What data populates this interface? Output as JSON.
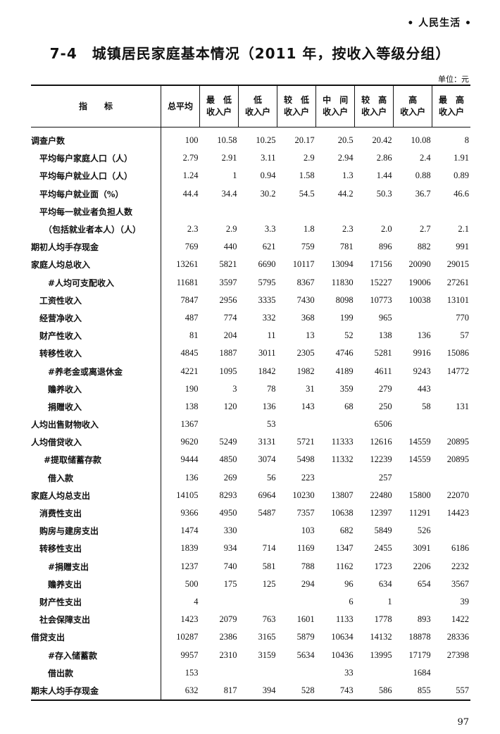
{
  "header": {
    "section": "• 人民生活 •",
    "title": "7-4　城镇居民家庭基本情况（2011 年，按收入等级分组）",
    "unit": "单位：元"
  },
  "table": {
    "columns": [
      "指　　标",
      "总平均",
      "最　低\n收入户",
      "低\n收入户",
      "较　低\n收入户",
      "中　间\n收入户",
      "较　高\n收入户",
      "高\n收入户",
      "最　高\n收入户"
    ],
    "rows": [
      {
        "label": "调查户数",
        "indent": 0,
        "values": [
          "100",
          "10.58",
          "10.25",
          "20.17",
          "20.5",
          "20.42",
          "10.08",
          "8"
        ]
      },
      {
        "label": "平均每户家庭人口（人）",
        "indent": 1,
        "values": [
          "2.79",
          "2.91",
          "3.11",
          "2.9",
          "2.94",
          "2.86",
          "2.4",
          "1.91"
        ]
      },
      {
        "label": "平均每户就业人口（人）",
        "indent": 1,
        "values": [
          "1.24",
          "1",
          "0.94",
          "1.58",
          "1.3",
          "1.44",
          "0.88",
          "0.89"
        ]
      },
      {
        "label": "平均每户就业面（%）",
        "indent": 1,
        "values": [
          "44.4",
          "34.4",
          "30.2",
          "54.5",
          "44.2",
          "50.3",
          "36.7",
          "46.6"
        ]
      },
      {
        "label": "平均每一就业者负担人数",
        "indent": 1,
        "values": [
          "",
          "",
          "",
          "",
          "",
          "",
          "",
          ""
        ]
      },
      {
        "label": "（包括就业者本人）（人）",
        "indent": 1.5,
        "values": [
          "2.3",
          "2.9",
          "3.3",
          "1.8",
          "2.3",
          "2.0",
          "2.7",
          "2.1"
        ]
      },
      {
        "label": "期初人均手存现金",
        "indent": 0,
        "values": [
          "769",
          "440",
          "621",
          "759",
          "781",
          "896",
          "882",
          "991"
        ]
      },
      {
        "label": "家庭人均总收入",
        "indent": 0,
        "values": [
          "13261",
          "5821",
          "6690",
          "10117",
          "13094",
          "17156",
          "20090",
          "29015"
        ]
      },
      {
        "label": "#人均可支配收入",
        "indent": 2,
        "values": [
          "11681",
          "3597",
          "5795",
          "8367",
          "11830",
          "15227",
          "19006",
          "27261"
        ]
      },
      {
        "label": "工资性收入",
        "indent": 1,
        "values": [
          "7847",
          "2956",
          "3335",
          "7430",
          "8098",
          "10773",
          "10038",
          "13101"
        ]
      },
      {
        "label": "经营净收入",
        "indent": 1,
        "values": [
          "487",
          "774",
          "332",
          "368",
          "199",
          "965",
          "",
          "770"
        ]
      },
      {
        "label": "财产性收入",
        "indent": 1,
        "values": [
          "81",
          "204",
          "11",
          "13",
          "52",
          "138",
          "136",
          "57"
        ]
      },
      {
        "label": "转移性收入",
        "indent": 1,
        "values": [
          "4845",
          "1887",
          "3011",
          "2305",
          "4746",
          "5281",
          "9916",
          "15086"
        ]
      },
      {
        "label": "#养老金或离退休金",
        "indent": 2,
        "values": [
          "4221",
          "1095",
          "1842",
          "1982",
          "4189",
          "4611",
          "9243",
          "14772"
        ]
      },
      {
        "label": "赡养收入",
        "indent": 2,
        "values": [
          "190",
          "3",
          "78",
          "31",
          "359",
          "279",
          "443",
          ""
        ]
      },
      {
        "label": "捐赠收入",
        "indent": 2,
        "values": [
          "138",
          "120",
          "136",
          "143",
          "68",
          "250",
          "58",
          "131"
        ]
      },
      {
        "label": "人均出售财物收入",
        "indent": 0,
        "values": [
          "1367",
          "",
          "53",
          "",
          "",
          "6506",
          "",
          ""
        ]
      },
      {
        "label": "人均借贷收入",
        "indent": 0,
        "values": [
          "9620",
          "5249",
          "3131",
          "5721",
          "11333",
          "12616",
          "14559",
          "20895"
        ]
      },
      {
        "label": "#提取储蓄存款",
        "indent": 1.5,
        "values": [
          "9444",
          "4850",
          "3074",
          "5498",
          "11332",
          "12239",
          "14559",
          "20895"
        ]
      },
      {
        "label": "借入款",
        "indent": 2,
        "values": [
          "136",
          "269",
          "56",
          "223",
          "",
          "257",
          "",
          ""
        ]
      },
      {
        "label": "家庭人均总支出",
        "indent": 0,
        "values": [
          "14105",
          "8293",
          "6964",
          "10230",
          "13807",
          "22480",
          "15800",
          "22070"
        ]
      },
      {
        "label": "消费性支出",
        "indent": 1,
        "values": [
          "9366",
          "4950",
          "5487",
          "7357",
          "10638",
          "12397",
          "11291",
          "14423"
        ]
      },
      {
        "label": "购房与建房支出",
        "indent": 1,
        "values": [
          "1474",
          "330",
          "",
          "103",
          "682",
          "5849",
          "526",
          ""
        ]
      },
      {
        "label": "转移性支出",
        "indent": 1,
        "values": [
          "1839",
          "934",
          "714",
          "1169",
          "1347",
          "2455",
          "3091",
          "6186"
        ]
      },
      {
        "label": "#捐赠支出",
        "indent": 2,
        "values": [
          "1237",
          "740",
          "581",
          "788",
          "1162",
          "1723",
          "2206",
          "2232"
        ]
      },
      {
        "label": "赡养支出",
        "indent": 2,
        "values": [
          "500",
          "175",
          "125",
          "294",
          "96",
          "634",
          "654",
          "3567"
        ]
      },
      {
        "label": "财产性支出",
        "indent": 1,
        "values": [
          "4",
          "",
          "",
          "",
          "6",
          "1",
          "",
          "39"
        ]
      },
      {
        "label": "社会保障支出",
        "indent": 1,
        "values": [
          "1423",
          "2079",
          "763",
          "1601",
          "1133",
          "1778",
          "893",
          "1422"
        ]
      },
      {
        "label": "借贷支出",
        "indent": 0,
        "values": [
          "10287",
          "2386",
          "3165",
          "5879",
          "10634",
          "14132",
          "18878",
          "28336"
        ]
      },
      {
        "label": "#存入储蓄款",
        "indent": 2,
        "values": [
          "9957",
          "2310",
          "3159",
          "5634",
          "10436",
          "13995",
          "17179",
          "27398"
        ]
      },
      {
        "label": "借出款",
        "indent": 2,
        "values": [
          "153",
          "",
          "",
          "",
          "33",
          "",
          "1684",
          ""
        ]
      },
      {
        "label": "期末人均手存现金",
        "indent": 0,
        "values": [
          "632",
          "817",
          "394",
          "528",
          "743",
          "586",
          "855",
          "557"
        ]
      }
    ]
  },
  "footer": {
    "page_number": "97"
  }
}
